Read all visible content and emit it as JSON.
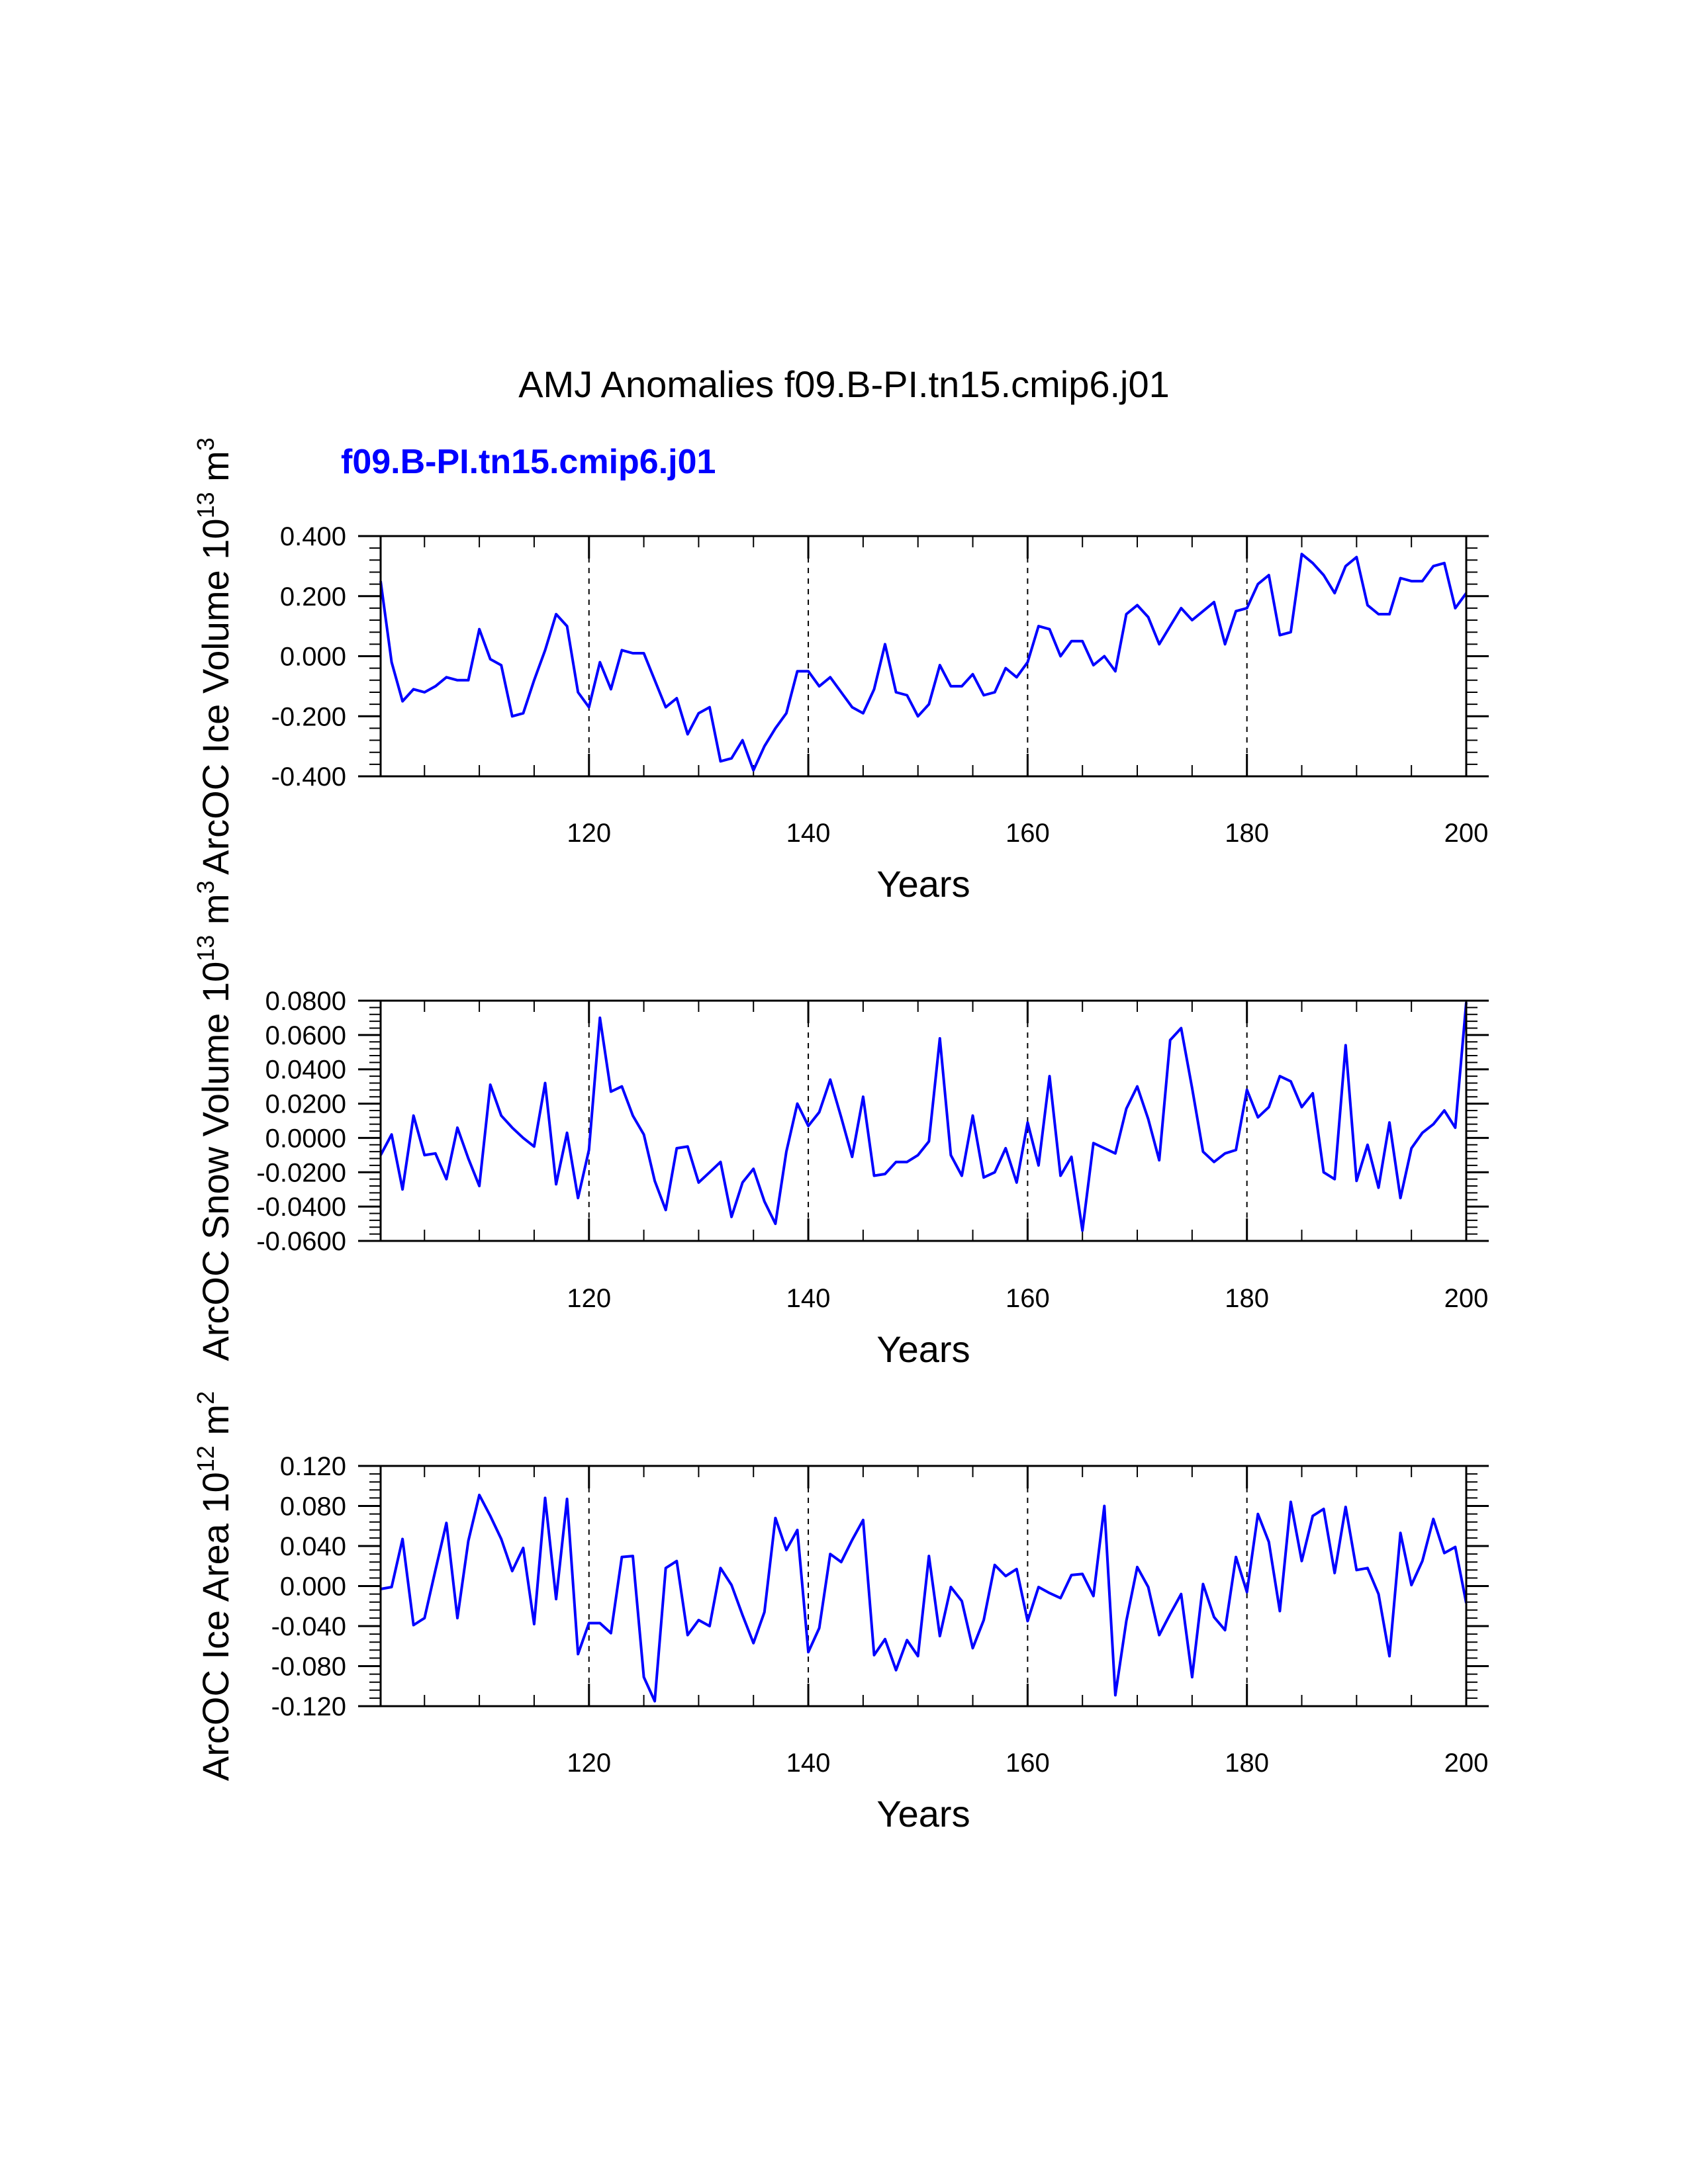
{
  "figure": {
    "title": "AMJ Anomalies f09.B-PI.tn15.cmip6.j01",
    "case_label": "f09.B-PI.tn15.cmip6.j01",
    "case_color": "#0000ff",
    "line_color": "#0000ff"
  },
  "chart_data": [
    {
      "type": "line",
      "title": "",
      "ylabel": "ArcOC Ice Volume",
      "yunit": {
        "base": "10",
        "exp": "13",
        "unit": "m",
        "unit_exp": "3"
      },
      "xlabel": "Years",
      "xlim": [
        101,
        200
      ],
      "ylim": [
        -0.4,
        0.4
      ],
      "xticks": [
        120,
        140,
        160,
        180,
        200
      ],
      "xtick_labels": [
        "120",
        "140",
        "160",
        "180",
        "200"
      ],
      "yticks": [
        -0.4,
        -0.2,
        0.0,
        0.2,
        0.4
      ],
      "ytick_labels": [
        "-0.400",
        "-0.200",
        "0.000",
        "0.200",
        "0.400"
      ],
      "vlines": [
        120,
        140,
        160,
        180
      ],
      "series": [
        {
          "name": "f09.B-PI.tn15.cmip6.j01",
          "x_start": 101,
          "values": [
            0.25,
            -0.02,
            -0.15,
            -0.11,
            -0.12,
            -0.1,
            -0.07,
            -0.08,
            -0.08,
            0.09,
            -0.01,
            -0.03,
            -0.2,
            -0.19,
            -0.08,
            0.02,
            0.14,
            0.1,
            -0.12,
            -0.17,
            -0.02,
            -0.11,
            0.02,
            0.01,
            0.01,
            -0.08,
            -0.17,
            -0.14,
            -0.26,
            -0.19,
            -0.17,
            -0.35,
            -0.34,
            -0.28,
            -0.38,
            -0.3,
            -0.24,
            -0.19,
            -0.05,
            -0.05,
            -0.1,
            -0.07,
            -0.12,
            -0.17,
            -0.19,
            -0.11,
            0.04,
            -0.12,
            -0.13,
            -0.2,
            -0.16,
            -0.03,
            -0.1,
            -0.1,
            -0.06,
            -0.13,
            -0.12,
            -0.04,
            -0.07,
            -0.02,
            0.1,
            0.09,
            0.0,
            0.05,
            0.05,
            -0.03,
            0.0,
            -0.05,
            0.14,
            0.17,
            0.13,
            0.04,
            0.1,
            0.16,
            0.12,
            0.15,
            0.18,
            0.04,
            0.15,
            0.16,
            0.24,
            0.27,
            0.07,
            0.08,
            0.34,
            0.31,
            0.27,
            0.21,
            0.3,
            0.33,
            0.17,
            0.14,
            0.14,
            0.26,
            0.25,
            0.25,
            0.3,
            0.31,
            0.16,
            0.21
          ]
        }
      ]
    },
    {
      "type": "line",
      "title": "",
      "ylabel": "ArcOC Snow Volume",
      "yunit": {
        "base": "10",
        "exp": "13",
        "unit": "m",
        "unit_exp": "3"
      },
      "xlabel": "Years",
      "xlim": [
        101,
        200
      ],
      "ylim": [
        -0.06,
        0.08
      ],
      "xticks": [
        120,
        140,
        160,
        180,
        200
      ],
      "xtick_labels": [
        "120",
        "140",
        "160",
        "180",
        "200"
      ],
      "yticks": [
        -0.06,
        -0.04,
        -0.02,
        0.0,
        0.02,
        0.04,
        0.06,
        0.08
      ],
      "ytick_labels": [
        "-0.0600",
        "-0.0400",
        "-0.0200",
        "0.0000",
        "0.0200",
        "0.0400",
        "0.0600",
        "0.0800"
      ],
      "vlines": [
        120,
        140,
        160,
        180
      ],
      "series": [
        {
          "name": "f09.B-PI.tn15.cmip6.j01",
          "x_start": 101,
          "values": [
            -0.01,
            0.002,
            -0.03,
            0.013,
            -0.01,
            -0.009,
            -0.024,
            0.006,
            -0.012,
            -0.028,
            0.031,
            0.013,
            0.006,
            0.0,
            -0.005,
            0.032,
            -0.027,
            0.003,
            -0.035,
            -0.007,
            0.07,
            0.027,
            0.03,
            0.013,
            0.002,
            -0.025,
            -0.042,
            -0.006,
            -0.005,
            -0.026,
            -0.02,
            -0.014,
            -0.046,
            -0.026,
            -0.018,
            -0.037,
            -0.05,
            -0.008,
            0.02,
            0.007,
            0.015,
            0.034,
            0.012,
            -0.011,
            0.024,
            -0.022,
            -0.021,
            -0.014,
            -0.014,
            -0.01,
            -0.002,
            0.058,
            -0.01,
            -0.022,
            0.013,
            -0.023,
            -0.02,
            -0.006,
            -0.026,
            0.009,
            -0.016,
            0.036,
            -0.022,
            -0.011,
            -0.054,
            -0.003,
            -0.006,
            -0.009,
            0.017,
            0.03,
            0.011,
            -0.013,
            0.057,
            0.064,
            0.029,
            -0.008,
            -0.014,
            -0.009,
            -0.007,
            0.028,
            0.012,
            0.018,
            0.036,
            0.033,
            0.018,
            0.026,
            -0.02,
            -0.024,
            0.054,
            -0.025,
            -0.004,
            -0.029,
            0.009,
            -0.035,
            -0.006,
            0.003,
            0.008,
            0.016,
            0.006,
            0.079
          ]
        }
      ]
    },
    {
      "type": "line",
      "title": "",
      "ylabel": "ArcOC Ice Area",
      "yunit": {
        "base": "10",
        "exp": "12",
        "unit": "m",
        "unit_exp": "2"
      },
      "xlabel": "Years",
      "xlim": [
        101,
        200
      ],
      "ylim": [
        -0.12,
        0.12
      ],
      "xticks": [
        120,
        140,
        160,
        180,
        200
      ],
      "xtick_labels": [
        "120",
        "140",
        "160",
        "180",
        "200"
      ],
      "yticks": [
        -0.12,
        -0.08,
        -0.04,
        0.0,
        0.04,
        0.08,
        0.12
      ],
      "ytick_labels": [
        "-0.120",
        "-0.080",
        "-0.040",
        "0.000",
        "0.040",
        "0.080",
        "0.120"
      ],
      "vlines": [
        120,
        140,
        160,
        180
      ],
      "series": [
        {
          "name": "f09.B-PI.tn15.cmip6.j01",
          "x_start": 101,
          "values": [
            -0.003,
            -0.001,
            0.047,
            -0.039,
            -0.032,
            0.016,
            0.063,
            -0.032,
            0.045,
            0.091,
            0.07,
            0.047,
            0.015,
            0.038,
            -0.038,
            0.088,
            -0.013,
            0.087,
            -0.068,
            -0.037,
            -0.037,
            -0.047,
            0.029,
            0.03,
            -0.091,
            -0.115,
            0.018,
            0.025,
            -0.049,
            -0.034,
            -0.04,
            0.018,
            0.001,
            -0.029,
            -0.057,
            -0.026,
            0.068,
            0.036,
            0.056,
            -0.066,
            -0.042,
            0.032,
            0.024,
            0.046,
            0.066,
            -0.069,
            -0.053,
            -0.084,
            -0.054,
            -0.07,
            0.03,
            -0.05,
            -0.001,
            -0.015,
            -0.062,
            -0.034,
            0.021,
            0.01,
            0.017,
            -0.035,
            -0.001,
            -0.007,
            -0.012,
            0.011,
            0.012,
            -0.01,
            0.08,
            -0.109,
            -0.035,
            0.019,
            -0.001,
            -0.049,
            -0.028,
            -0.008,
            -0.091,
            0.002,
            -0.031,
            -0.044,
            0.029,
            -0.006,
            0.072,
            0.044,
            -0.025,
            0.084,
            0.025,
            0.07,
            0.077,
            0.013,
            0.079,
            0.016,
            0.018,
            -0.008,
            -0.07,
            0.053,
            0.001,
            0.025,
            0.067,
            0.033,
            0.039,
            -0.017
          ]
        }
      ]
    }
  ]
}
